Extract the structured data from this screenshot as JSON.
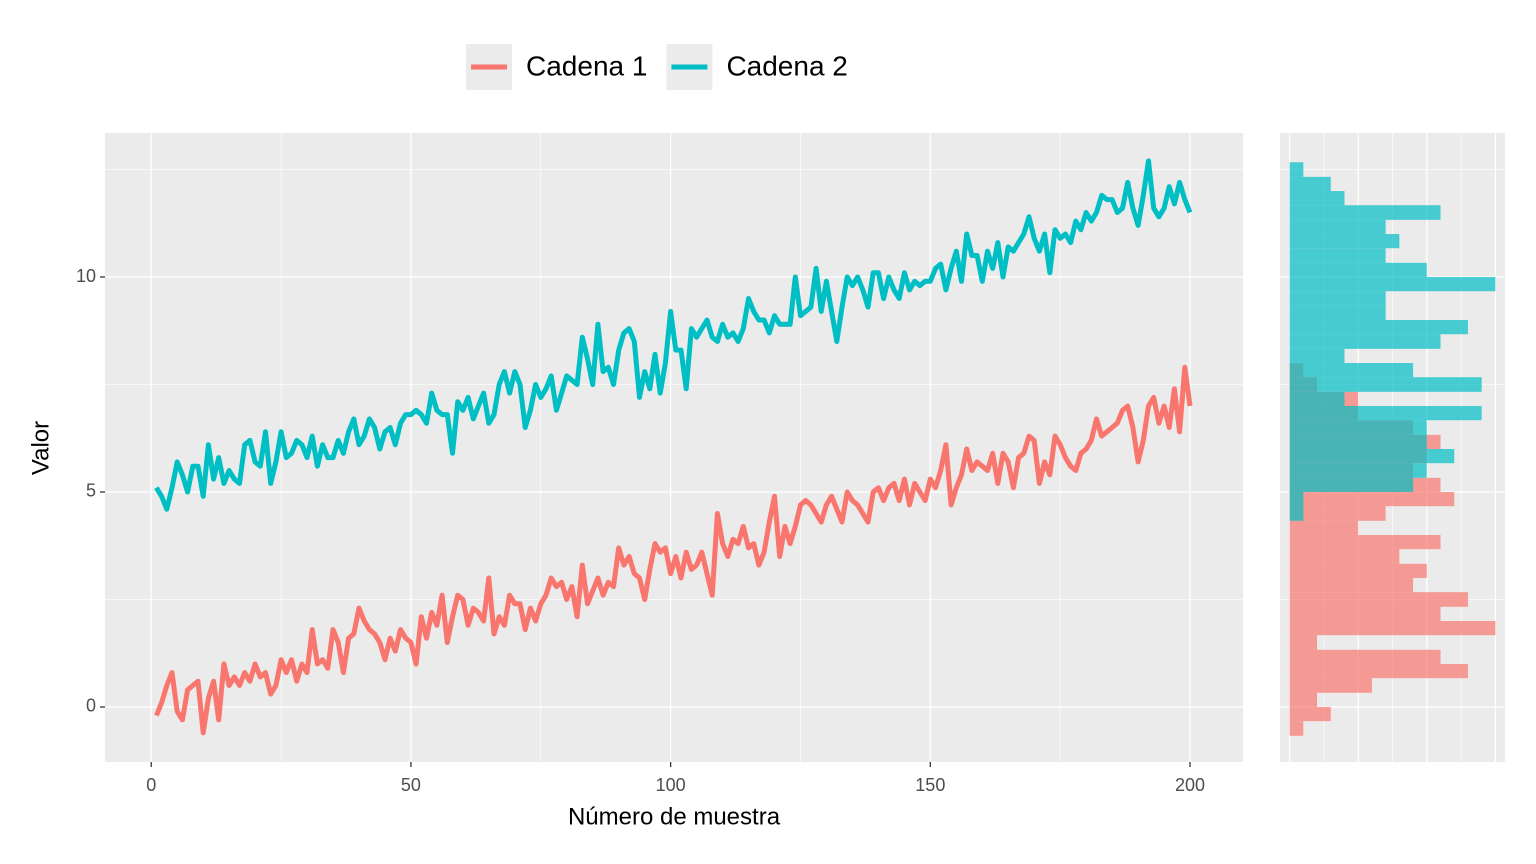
{
  "chart_data": [
    {
      "type": "line",
      "xlabel": "Número de muestra",
      "ylabel": "Valor",
      "legend": "top",
      "x": [
        1,
        2,
        3,
        4,
        5,
        6,
        7,
        8,
        9,
        10,
        11,
        12,
        13,
        14,
        15,
        16,
        17,
        18,
        19,
        20,
        21,
        22,
        23,
        24,
        25,
        26,
        27,
        28,
        29,
        30,
        31,
        32,
        33,
        34,
        35,
        36,
        37,
        38,
        39,
        40,
        41,
        42,
        43,
        44,
        45,
        46,
        47,
        48,
        49,
        50,
        51,
        52,
        53,
        54,
        55,
        56,
        57,
        58,
        59,
        60,
        61,
        62,
        63,
        64,
        65,
        66,
        67,
        68,
        69,
        70,
        71,
        72,
        73,
        74,
        75,
        76,
        77,
        78,
        79,
        80,
        81,
        82,
        83,
        84,
        85,
        86,
        87,
        88,
        89,
        90,
        91,
        92,
        93,
        94,
        95,
        96,
        97,
        98,
        99,
        100,
        101,
        102,
        103,
        104,
        105,
        106,
        107,
        108,
        109,
        110,
        111,
        112,
        113,
        114,
        115,
        116,
        117,
        118,
        119,
        120,
        121,
        122,
        123,
        124,
        125,
        126,
        127,
        128,
        129,
        130,
        131,
        132,
        133,
        134,
        135,
        136,
        137,
        138,
        139,
        140,
        141,
        142,
        143,
        144,
        145,
        146,
        147,
        148,
        149,
        150,
        151,
        152,
        153,
        154,
        155,
        156,
        157,
        158,
        159,
        160,
        161,
        162,
        163,
        164,
        165,
        166,
        167,
        168,
        169,
        170,
        171,
        172,
        173,
        174,
        175,
        176,
        177,
        178,
        179,
        180,
        181,
        182,
        183,
        184,
        185,
        186,
        187,
        188,
        189,
        190,
        191,
        192,
        193,
        194,
        195,
        196,
        197,
        198,
        199,
        200
      ],
      "series": [
        {
          "name": "Cadena 1",
          "color": "#F8766D",
          "values": [
            -0.2,
            0.1,
            0.5,
            0.8,
            -0.1,
            -0.3,
            0.4,
            0.5,
            0.6,
            -0.6,
            0.2,
            0.6,
            -0.3,
            1.0,
            0.5,
            0.7,
            0.5,
            0.8,
            0.6,
            1.0,
            0.7,
            0.8,
            0.3,
            0.5,
            1.1,
            0.8,
            1.1,
            0.6,
            1.0,
            0.8,
            1.8,
            1.0,
            1.1,
            0.9,
            1.8,
            1.5,
            0.8,
            1.6,
            1.7,
            2.3,
            2.0,
            1.8,
            1.7,
            1.5,
            1.1,
            1.6,
            1.3,
            1.8,
            1.6,
            1.5,
            1.0,
            2.1,
            1.6,
            2.2,
            1.9,
            2.6,
            1.5,
            2.1,
            2.6,
            2.5,
            1.9,
            2.3,
            2.2,
            2.0,
            3.0,
            1.7,
            2.1,
            1.9,
            2.6,
            2.4,
            2.4,
            1.8,
            2.3,
            2.0,
            2.4,
            2.6,
            3.0,
            2.8,
            2.9,
            2.5,
            2.8,
            2.1,
            3.3,
            2.4,
            2.7,
            3.0,
            2.6,
            2.9,
            2.8,
            3.7,
            3.3,
            3.5,
            3.1,
            3.0,
            2.5,
            3.2,
            3.8,
            3.6,
            3.7,
            3.1,
            3.5,
            3.0,
            3.6,
            3.2,
            3.3,
            3.6,
            3.1,
            2.6,
            4.5,
            3.8,
            3.5,
            3.9,
            3.8,
            4.2,
            3.7,
            3.8,
            3.3,
            3.6,
            4.3,
            4.9,
            3.5,
            4.2,
            3.8,
            4.2,
            4.7,
            4.8,
            4.7,
            4.5,
            4.3,
            4.7,
            4.9,
            4.6,
            4.3,
            5.0,
            4.8,
            4.7,
            4.5,
            4.3,
            5.0,
            5.1,
            4.8,
            5.1,
            5.2,
            4.8,
            5.3,
            4.7,
            5.2,
            5.0,
            4.8,
            5.3,
            5.1,
            5.5,
            6.1,
            4.7,
            5.1,
            5.4,
            6.0,
            5.5,
            5.7,
            5.6,
            5.5,
            5.9,
            5.2,
            5.9,
            5.7,
            5.1,
            5.8,
            5.9,
            6.3,
            6.2,
            5.2,
            5.7,
            5.4,
            6.3,
            6.1,
            5.8,
            5.6,
            5.5,
            5.9,
            6.0,
            6.2,
            6.7,
            6.3,
            6.4,
            6.5,
            6.6,
            6.9,
            7.0,
            6.5,
            5.7,
            6.2,
            7.0,
            7.2,
            6.6,
            7.0,
            6.5,
            7.4,
            6.4,
            7.9,
            7.0
          ]
        },
        {
          "name": "Cadena 2",
          "color": "#00BFC4",
          "values": [
            5.1,
            4.9,
            4.6,
            5.1,
            5.7,
            5.4,
            5.0,
            5.6,
            5.6,
            4.9,
            6.1,
            5.3,
            5.8,
            5.2,
            5.5,
            5.3,
            5.2,
            6.1,
            6.2,
            5.7,
            5.6,
            6.4,
            5.2,
            5.7,
            6.4,
            5.8,
            5.9,
            6.2,
            6.1,
            5.8,
            6.3,
            5.6,
            6.1,
            5.8,
            5.8,
            6.2,
            5.9,
            6.4,
            6.7,
            6.1,
            6.3,
            6.7,
            6.5,
            6.0,
            6.4,
            6.5,
            6.1,
            6.6,
            6.8,
            6.8,
            6.9,
            6.8,
            6.6,
            7.3,
            6.9,
            6.8,
            6.8,
            5.9,
            7.1,
            6.9,
            7.2,
            6.7,
            7.0,
            7.3,
            6.6,
            6.8,
            7.5,
            7.8,
            7.3,
            7.8,
            7.5,
            6.5,
            6.9,
            7.5,
            7.2,
            7.4,
            7.7,
            6.9,
            7.3,
            7.7,
            7.6,
            7.5,
            8.6,
            8.1,
            7.5,
            8.9,
            7.8,
            7.9,
            7.5,
            8.3,
            8.7,
            8.8,
            8.5,
            7.2,
            7.8,
            7.4,
            8.2,
            7.3,
            8.0,
            9.2,
            8.3,
            8.3,
            7.4,
            8.8,
            8.6,
            8.8,
            9.0,
            8.6,
            8.5,
            8.9,
            8.6,
            8.7,
            8.5,
            8.8,
            9.5,
            9.2,
            9.0,
            9.0,
            8.7,
            9.1,
            8.9,
            8.9,
            8.9,
            10.0,
            9.1,
            9.2,
            9.3,
            10.2,
            9.2,
            9.9,
            9.2,
            8.5,
            9.3,
            10.0,
            9.8,
            10.0,
            9.7,
            9.3,
            10.1,
            10.1,
            9.5,
            10.0,
            9.7,
            9.5,
            10.1,
            9.7,
            9.9,
            9.8,
            9.9,
            9.9,
            10.2,
            10.3,
            9.7,
            10.2,
            10.6,
            9.9,
            11.0,
            10.5,
            10.5,
            9.9,
            10.6,
            10.2,
            10.8,
            10.0,
            10.7,
            10.6,
            10.8,
            11.0,
            11.4,
            10.9,
            10.6,
            11.0,
            10.1,
            11.1,
            10.9,
            11.0,
            10.8,
            11.3,
            11.1,
            11.5,
            11.3,
            11.5,
            11.9,
            11.8,
            11.8,
            11.5,
            11.6,
            12.2,
            11.6,
            11.2,
            11.9,
            12.7,
            11.6,
            11.4,
            11.6,
            12.1,
            11.7,
            12.2,
            11.8,
            11.5
          ]
        }
      ],
      "xlim": [
        -8.9,
        210.2
      ],
      "xticks": [
        0,
        50,
        100,
        150,
        200
      ],
      "ylim": [
        -1.28,
        13.35
      ],
      "yticks": [
        0,
        5,
        10
      ],
      "grid": true
    },
    {
      "type": "histogram",
      "orientation": "horizontal",
      "bins": [
        -0.67,
        -0.33,
        0,
        0.33,
        0.67,
        1,
        1.33,
        1.67,
        2,
        2.33,
        2.67,
        3,
        3.33,
        3.67,
        4,
        4.33,
        4.67,
        5,
        5.33,
        5.67,
        6,
        6.33,
        6.67,
        7,
        7.33,
        7.67,
        8,
        8.33,
        8.67,
        9,
        9.33,
        9.67,
        10,
        10.33,
        10.67,
        11,
        11.33,
        11.67,
        12,
        12.33,
        12.67
      ],
      "series": [
        {
          "color": "#F8766D",
          "values": [
            1,
            3,
            2,
            6,
            13,
            11,
            2,
            15,
            11,
            13,
            9,
            10,
            8,
            11,
            5,
            7,
            12,
            11,
            9,
            10,
            11,
            9,
            5,
            5,
            2,
            1,
            0,
            0,
            0,
            0,
            0,
            0,
            0,
            0,
            0,
            0,
            0,
            0,
            0,
            0
          ]
        },
        {
          "color": "#00BFC4",
          "values": [
            0,
            0,
            0,
            0,
            0,
            0,
            0,
            0,
            0,
            0,
            0,
            0,
            0,
            0,
            0,
            1,
            1,
            9,
            10,
            12,
            10,
            10,
            14,
            4,
            14,
            9,
            4,
            11,
            13,
            7,
            7,
            15,
            10,
            7,
            8,
            7,
            11,
            4,
            3,
            1
          ]
        }
      ],
      "xlim": [
        -0.7,
        15.7
      ],
      "xticks": [
        0,
        5,
        10,
        15
      ],
      "ylim": [
        -1.28,
        13.35
      ],
      "yticks": [
        0,
        5,
        10
      ],
      "grid": true
    }
  ]
}
